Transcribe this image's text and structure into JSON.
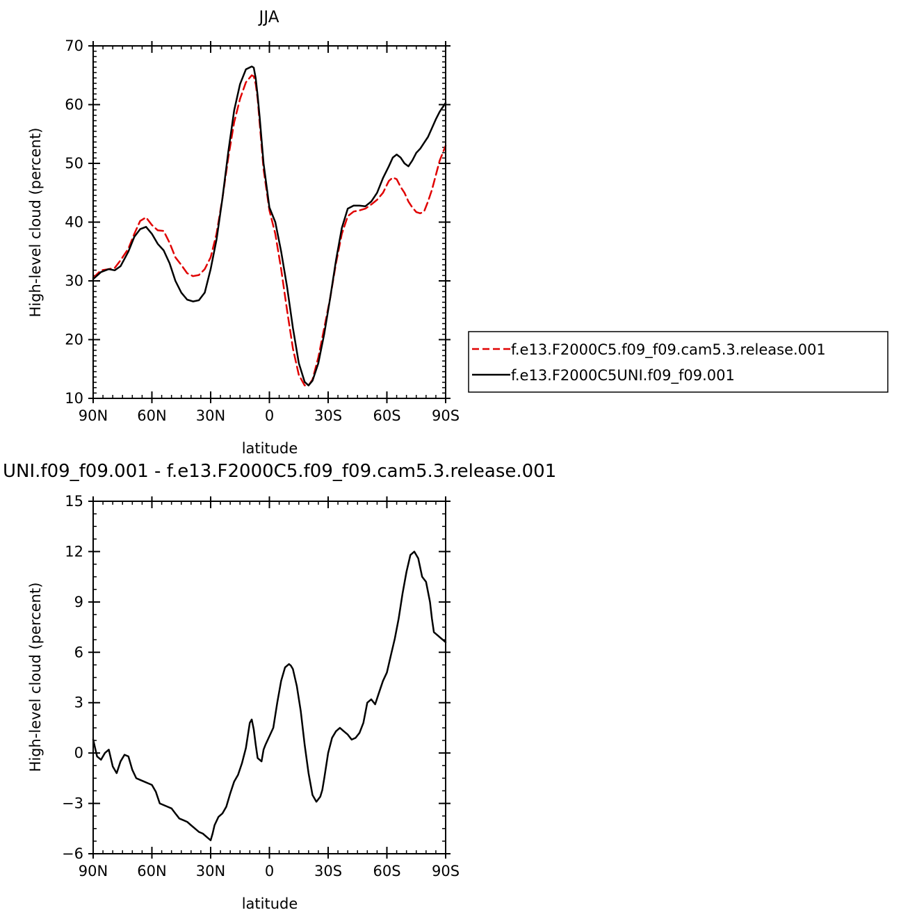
{
  "chart_data": [
    {
      "type": "line",
      "title": "JJA",
      "xlabel": "latitude",
      "ylabel": "High-level cloud (percent)",
      "xlim": [
        -90,
        90
      ],
      "ylim": [
        10,
        70
      ],
      "x_ticks": [
        -90,
        -60,
        -30,
        0,
        30,
        60,
        90
      ],
      "x_tick_labels": [
        "90N",
        "60N",
        "30N",
        "0",
        "30S",
        "60S",
        "90S"
      ],
      "y_ticks": [
        10,
        20,
        30,
        40,
        50,
        60,
        70
      ],
      "y_tick_labels": [
        "10",
        "20",
        "30",
        "40",
        "50",
        "60",
        "70"
      ],
      "legend_position": "right",
      "series": [
        {
          "name": "f.e13.F2000C5.f09_f09.cam5.3.release.001",
          "color": "#e00000",
          "dash": "dashed",
          "x": [
            -90,
            -86,
            -82,
            -79,
            -76,
            -72,
            -69,
            -66,
            -63,
            -60,
            -57,
            -54,
            -51,
            -48,
            -45,
            -42,
            -39,
            -36,
            -33,
            -30,
            -27,
            -24,
            -21,
            -18,
            -15,
            -12,
            -9,
            -8,
            -7,
            -6,
            -5,
            -3,
            0,
            3,
            6,
            9,
            12,
            15,
            18,
            20,
            22,
            25,
            28,
            31,
            34,
            37,
            40,
            43,
            46,
            49,
            52,
            55,
            58,
            61,
            63,
            65,
            67,
            69,
            71,
            73,
            75,
            77,
            79,
            81,
            83,
            85,
            87,
            90
          ],
          "y": [
            30.5,
            31.8,
            32.0,
            32.2,
            33.5,
            35.5,
            38.0,
            40.2,
            40.8,
            39.5,
            38.6,
            38.5,
            36.5,
            34.0,
            32.7,
            31.3,
            30.8,
            31.0,
            32.0,
            34.0,
            38.0,
            44.0,
            51.0,
            57.0,
            61.0,
            63.8,
            65.0,
            64.8,
            63.5,
            61.0,
            57.0,
            49.0,
            42.0,
            38.0,
            32.0,
            25.0,
            18.5,
            14.0,
            12.2,
            12.2,
            13.2,
            17.0,
            22.0,
            27.0,
            33.0,
            38.0,
            41.0,
            41.8,
            42.0,
            42.3,
            43.0,
            43.8,
            45.0,
            47.0,
            47.6,
            47.3,
            46.0,
            45.0,
            43.5,
            42.5,
            41.7,
            41.5,
            41.8,
            43.5,
            45.5,
            48.0,
            50.5,
            53.0
          ]
        },
        {
          "name": "f.e13.F2000C5UNI.f09_f09.001",
          "color": "#000000",
          "dash": "solid",
          "x": [
            -90,
            -86,
            -82,
            -79,
            -76,
            -72,
            -69,
            -66,
            -63,
            -60,
            -57,
            -54,
            -51,
            -48,
            -45,
            -42,
            -39,
            -36,
            -33,
            -30,
            -27,
            -24,
            -21,
            -18,
            -15,
            -12,
            -9,
            -8,
            -7,
            -6,
            -5,
            -3,
            0,
            3,
            6,
            9,
            12,
            15,
            18,
            20,
            22,
            25,
            28,
            31,
            34,
            37,
            40,
            43,
            46,
            49,
            52,
            55,
            58,
            61,
            63,
            65,
            67,
            69,
            71,
            73,
            75,
            77,
            79,
            81,
            83,
            85,
            87,
            90
          ],
          "y": [
            30.3,
            31.5,
            32.0,
            31.8,
            32.5,
            35.0,
            37.5,
            38.8,
            39.2,
            38.0,
            36.3,
            35.2,
            33.0,
            30.0,
            28.0,
            26.8,
            26.5,
            26.7,
            28.0,
            32.0,
            37.0,
            44.0,
            52.0,
            59.0,
            63.5,
            66.0,
            66.5,
            66.3,
            64.5,
            61.5,
            58.0,
            50.0,
            42.5,
            40.0,
            35.0,
            29.0,
            22.0,
            16.0,
            12.8,
            12.2,
            13.0,
            16.0,
            21.0,
            27.0,
            33.5,
            39.0,
            42.3,
            42.8,
            42.8,
            42.7,
            43.5,
            45.0,
            47.5,
            49.5,
            51.0,
            51.5,
            51.0,
            50.0,
            49.5,
            50.5,
            51.8,
            52.5,
            53.5,
            54.5,
            56.0,
            57.5,
            58.8,
            60.3
          ]
        }
      ]
    },
    {
      "type": "line",
      "title": "UNI.f09_f09.001 - f.e13.F2000C5.f09_f09.cam5.3.release.001",
      "xlabel": "latitude",
      "ylabel": "High-level cloud (percent)",
      "xlim": [
        -90,
        90
      ],
      "ylim": [
        -6,
        15
      ],
      "x_ticks": [
        -90,
        -60,
        -30,
        0,
        30,
        60,
        90
      ],
      "x_tick_labels": [
        "90N",
        "60N",
        "30N",
        "0",
        "30S",
        "60S",
        "90S"
      ],
      "y_ticks": [
        -6,
        -3,
        0,
        3,
        6,
        9,
        12,
        15
      ],
      "y_tick_labels": [
        "−6",
        "−3",
        "0",
        "3",
        "6",
        "9",
        "12",
        "15"
      ],
      "series": [
        {
          "color": "#000000",
          "dash": "solid",
          "x": [
            -90,
            -88,
            -86,
            -84,
            -82,
            -80,
            -78,
            -76,
            -74,
            -72,
            -70,
            -68,
            -66,
            -64,
            -62,
            -60,
            -58,
            -56,
            -54,
            -52,
            -50,
            -48,
            -46,
            -44,
            -42,
            -40,
            -38,
            -36,
            -34,
            -32,
            -30,
            -29,
            -28,
            -26,
            -24,
            -22,
            -20,
            -18,
            -16,
            -14,
            -12,
            -10,
            -9,
            -8,
            -7,
            -6,
            -4,
            -3,
            -2,
            0,
            2,
            4,
            6,
            8,
            10,
            11,
            12,
            14,
            16,
            18,
            20,
            22,
            24,
            26,
            27,
            28,
            30,
            32,
            34,
            36,
            38,
            40,
            42,
            44,
            46,
            48,
            50,
            52,
            54,
            56,
            58,
            60,
            62,
            64,
            66,
            68,
            70,
            72,
            74,
            76,
            78,
            80,
            82,
            83,
            84,
            86,
            88,
            90
          ],
          "y": [
            0.8,
            -0.2,
            -0.4,
            0.0,
            0.2,
            -0.8,
            -1.2,
            -0.5,
            -0.1,
            -0.2,
            -1.0,
            -1.5,
            -1.6,
            -1.7,
            -1.8,
            -1.9,
            -2.3,
            -3.0,
            -3.1,
            -3.2,
            -3.3,
            -3.6,
            -3.9,
            -4.0,
            -4.1,
            -4.3,
            -4.5,
            -4.7,
            -4.8,
            -5.0,
            -5.2,
            -4.8,
            -4.3,
            -3.8,
            -3.6,
            -3.2,
            -2.4,
            -1.7,
            -1.3,
            -0.6,
            0.3,
            1.8,
            2.0,
            1.4,
            0.5,
            -0.3,
            -0.5,
            0.2,
            0.5,
            1.0,
            1.5,
            3.0,
            4.3,
            5.1,
            5.3,
            5.2,
            5.0,
            4.0,
            2.5,
            0.5,
            -1.2,
            -2.5,
            -2.9,
            -2.6,
            -2.2,
            -1.5,
            0.0,
            0.9,
            1.3,
            1.5,
            1.3,
            1.1,
            0.8,
            0.9,
            1.2,
            1.8,
            3.0,
            3.2,
            2.9,
            3.6,
            4.3,
            4.8,
            5.8,
            6.8,
            8.0,
            9.5,
            10.8,
            11.8,
            12.0,
            11.6,
            10.5,
            10.2,
            9.0,
            8.0,
            7.2,
            7.0,
            6.8,
            6.6
          ]
        }
      ]
    }
  ]
}
